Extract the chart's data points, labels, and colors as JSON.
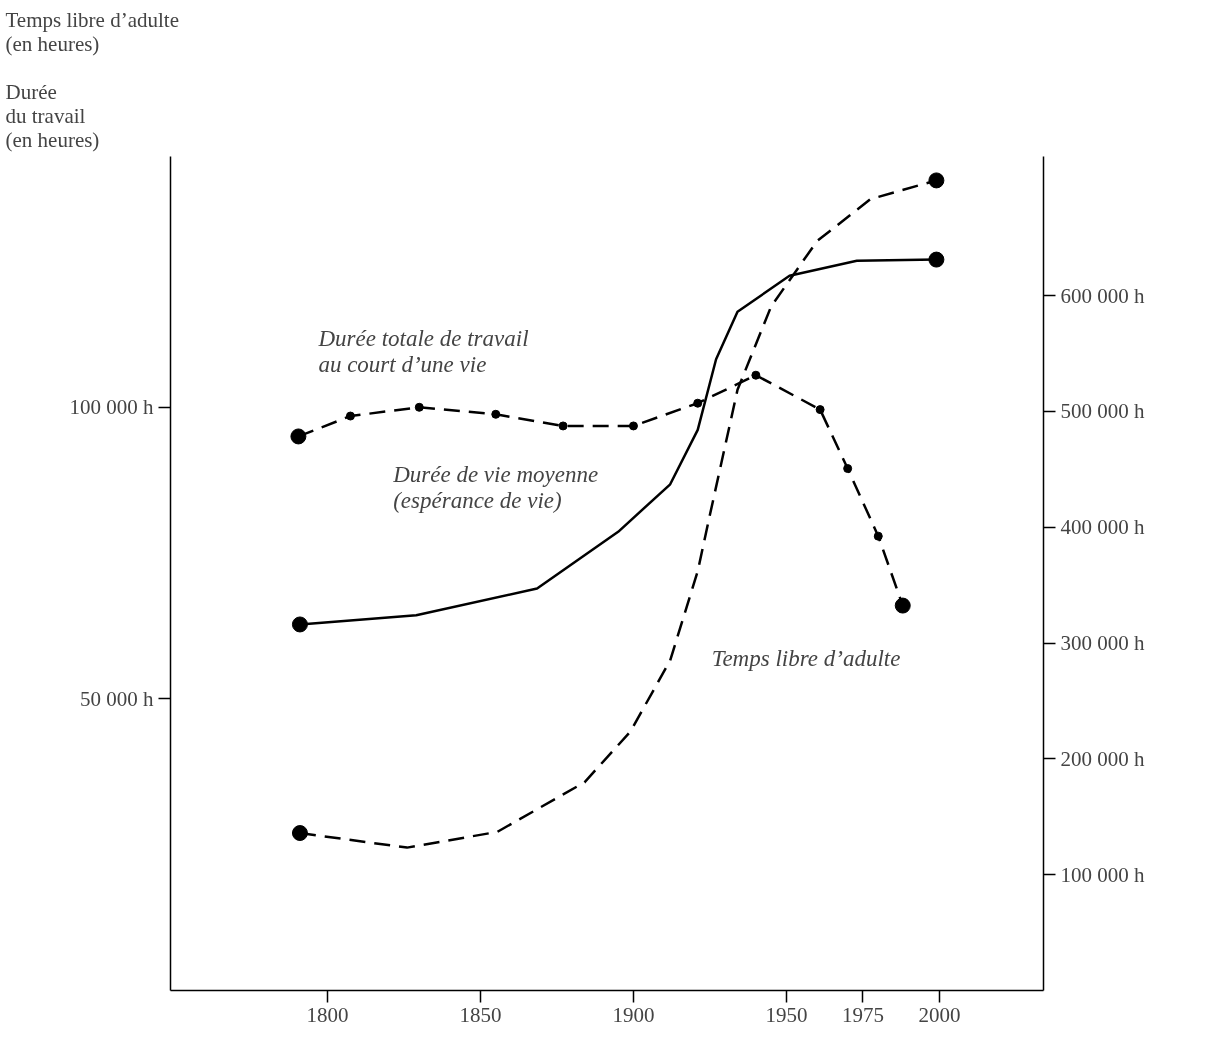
{
  "chart_data": {
    "type": "line",
    "ylabel": "Temps libre d’adulte\n(en heures)\n\nDurée\ndu travail\n(en heures)",
    "xlim": [
      1748.7,
      2034
    ],
    "xticks": [
      1800,
      1850,
      1900,
      1950,
      1975,
      2000
    ],
    "ylim": [
      0,
      143000
    ],
    "yticks": [
      {
        "value": 50000,
        "label": "50 000 h"
      },
      {
        "value": 100000,
        "label": "100 000 h"
      }
    ],
    "y2lim": [
      0,
      720000
    ],
    "y2ticks": [
      {
        "value": 100000,
        "label": "100 000 h"
      },
      {
        "value": 200000,
        "label": "200 000 h"
      },
      {
        "value": 300000,
        "label": "300 000 h"
      },
      {
        "value": 400000,
        "label": "400 000 h"
      },
      {
        "value": 500000,
        "label": "500 000 h"
      },
      {
        "value": 600000,
        "label": "600 000 h"
      }
    ],
    "grid": false,
    "series": [
      {
        "name": "Durée totale de travail\nau court d’une vie",
        "color": "#000000",
        "line_style": "dashed",
        "marker": "circle",
        "x": [
          1790.5,
          1807.5,
          1830,
          1855,
          1877,
          1900,
          1921,
          1940,
          1961,
          1970,
          1980,
          1988
        ],
        "values": [
          95000,
          98500,
          100000,
          98800,
          96800,
          96800,
          100700,
          105500,
          99600,
          89500,
          77900,
          66000
        ]
      },
      {
        "name": "Durée de vie moyenne\n(espérance de vie)",
        "color": "#000000",
        "line_style": "solid",
        "axis": "y2",
        "x": [
          1791,
          1829,
          1868.5,
          1895,
          1912,
          1921,
          1927,
          1934,
          1951,
          1973,
          1999
        ],
        "values": [
          316000,
          324000,
          347000,
          396000,
          437000,
          484000,
          545000,
          586000,
          617000,
          630000,
          631000
        ]
      },
      {
        "name": "Temps libre d’adulte",
        "color": "#000000",
        "line_style": "dashed",
        "x": [
          1791,
          1826,
          1855.5,
          1884,
          1899,
          1912,
          1921,
          1925,
          1934,
          1945,
          1960,
          1977.5,
          1999
        ],
        "values": [
          27000,
          24500,
          27200,
          35700,
          44400,
          56600,
          71900,
          81600,
          103000,
          117300,
          128500,
          135700,
          138900
        ]
      },
      {
        "type": "scatter",
        "color": "#000000",
        "marker": "circle",
        "x": [
          1790.5,
          1988,
          1791,
          1999
        ],
        "values": [
          95000,
          66000,
          27000,
          138900
        ]
      },
      {
        "type": "scatter",
        "color": "#000000",
        "marker": "circle",
        "axis": "y2",
        "x": [
          1791,
          1999
        ],
        "values": [
          316000,
          631000
        ]
      }
    ]
  }
}
